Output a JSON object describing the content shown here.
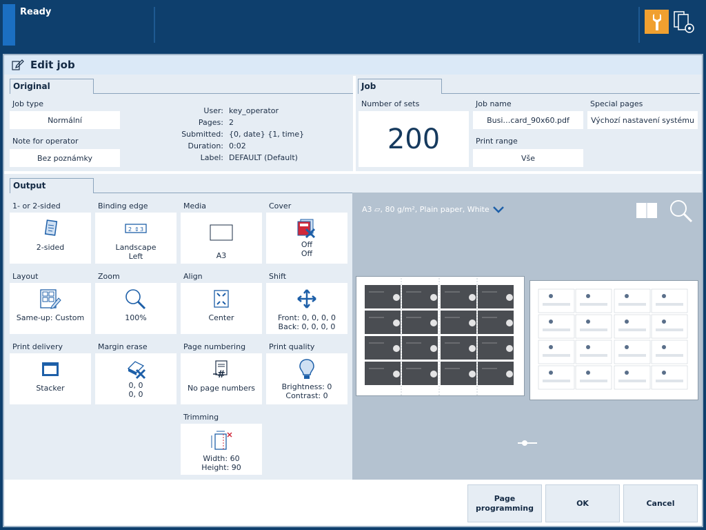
{
  "status": {
    "text": "Ready"
  },
  "colors": {
    "accent": "#f0a030",
    "brand": "#0e3f6d",
    "highlight": "#1b6fc2"
  },
  "dialog": {
    "title": "Edit job"
  },
  "original": {
    "tab": "Original",
    "job_type_label": "Job type",
    "job_type_value": "Normální",
    "note_label": "Note for operator",
    "note_value": "Bez poznámky",
    "info": [
      {
        "key": "User:",
        "value": "key_operator"
      },
      {
        "key": "Pages:",
        "value": "2"
      },
      {
        "key": "Submitted:",
        "value": "{0, date} {1, time}"
      },
      {
        "key": "Duration:",
        "value": "0:02"
      },
      {
        "key": "Label:",
        "value": "DEFAULT (Default)"
      }
    ]
  },
  "job": {
    "tab": "Job",
    "sets_label": "Number of sets",
    "sets_value": "200",
    "job_name_label": "Job name",
    "job_name_value": "Busi…card_90x60.pdf",
    "special_pages_label": "Special pages",
    "special_pages_value": "Výchozí nastavení systému",
    "print_range_label": "Print range",
    "print_range_value": "Vše"
  },
  "output": {
    "tab": "Output",
    "tiles": {
      "sided": {
        "label": "1- or 2-sided",
        "line1": "2-sided",
        "line2": ""
      },
      "binding": {
        "label": "Binding edge",
        "line1": "Landscape",
        "line2": "Left"
      },
      "media": {
        "label": "Media",
        "line1": "A3",
        "line2": ""
      },
      "cover": {
        "label": "Cover",
        "line1": "Off",
        "line2": "Off"
      },
      "layout": {
        "label": "Layout",
        "line1": "Same-up: Custom",
        "line2": ""
      },
      "zoom": {
        "label": "Zoom",
        "line1": "100%",
        "line2": ""
      },
      "align": {
        "label": "Align",
        "line1": "Center",
        "line2": ""
      },
      "shift": {
        "label": "Shift",
        "line1": "Front: 0, 0, 0, 0",
        "line2": "Back: 0, 0, 0, 0"
      },
      "delivery": {
        "label": "Print delivery",
        "line1": "Stacker",
        "line2": ""
      },
      "margin": {
        "label": "Margin erase",
        "line1": "0, 0",
        "line2": "0, 0"
      },
      "numbering": {
        "label": "Page numbering",
        "line1": "No page numbers",
        "line2": ""
      },
      "quality": {
        "label": "Print quality",
        "line1": "Brightness: 0",
        "line2": "Contrast: 0"
      },
      "trimming": {
        "label": "Trimming",
        "line1": "Width: 60",
        "line2": "Height: 90"
      }
    }
  },
  "preview": {
    "media_info": "A3 ▱, 80 g/m², Plain paper, White"
  },
  "buttons": {
    "page_programming_1": "Page",
    "page_programming_2": "programming",
    "ok": "OK",
    "cancel": "Cancel"
  }
}
